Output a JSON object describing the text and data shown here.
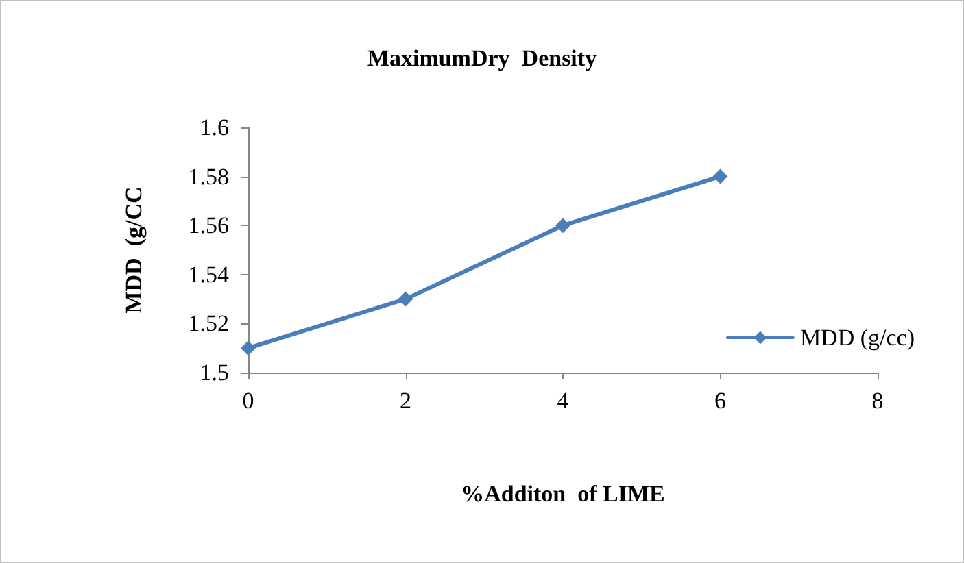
{
  "chart_data": {
    "type": "line",
    "title": "MaximumDry  Density",
    "xlabel": "%Additon  of LIME",
    "ylabel": "MDD  (g/CC",
    "x": [
      0,
      2,
      4,
      6
    ],
    "series": [
      {
        "name": "MDD (g/cc)",
        "color": "#4a7ebb",
        "values": [
          1.51,
          1.53,
          1.56,
          1.58
        ]
      }
    ],
    "xlim": [
      0,
      8
    ],
    "xticks": [
      0,
      2,
      4,
      6,
      8
    ],
    "ylim": [
      1.5,
      1.6
    ],
    "yticks": [
      1.5,
      1.52,
      1.54,
      1.56,
      1.58,
      1.6
    ],
    "grid": false,
    "legend": "right",
    "marker": "diamond",
    "line_style": "solid"
  }
}
